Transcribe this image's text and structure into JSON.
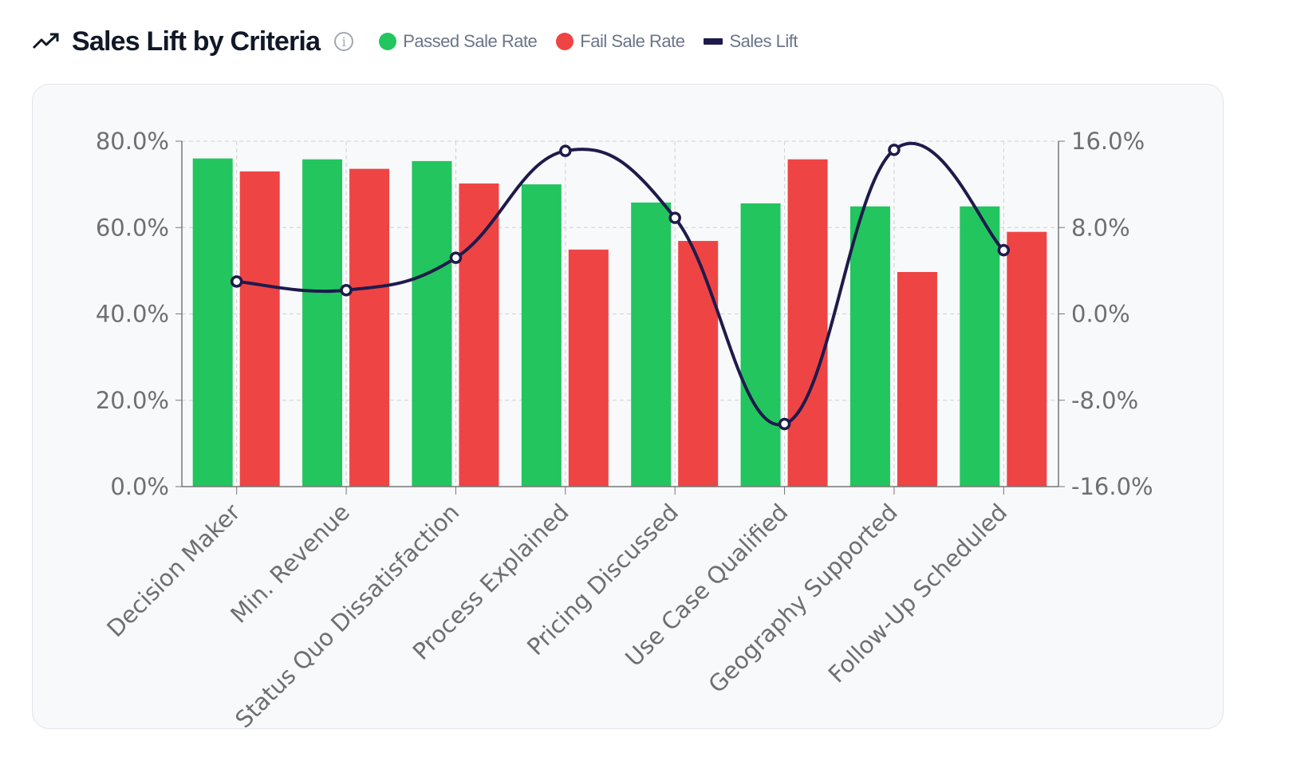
{
  "header": {
    "title": "Sales Lift by Criteria",
    "icon": "trending-up-icon",
    "info_icon": "info-icon"
  },
  "legend": [
    {
      "label": "Passed Sale Rate",
      "color": "#22c55e",
      "shape": "circle"
    },
    {
      "label": "Fail Sale Rate",
      "color": "#ef4444",
      "shape": "circle"
    },
    {
      "label": "Sales Lift",
      "color": "#1e1b4b",
      "shape": "line"
    }
  ],
  "chart_data": {
    "type": "bar+line",
    "categories": [
      "Decision Maker",
      "Min. Revenue",
      "Status Quo Dissatisfaction",
      "Process Explained",
      "Pricing Discussed",
      "Use Case Qualified",
      "Geography Supported",
      "Follow-Up Scheduled"
    ],
    "series": [
      {
        "name": "Passed Sale Rate",
        "type": "bar",
        "axis": "left",
        "color": "#22c55e",
        "values": [
          76.0,
          75.8,
          75.4,
          70.0,
          65.8,
          65.6,
          64.9,
          64.9
        ]
      },
      {
        "name": "Fail Sale Rate",
        "type": "bar",
        "axis": "left",
        "color": "#ef4444",
        "values": [
          73.0,
          73.6,
          70.2,
          54.9,
          56.9,
          75.8,
          49.7,
          59.0
        ]
      },
      {
        "name": "Sales Lift",
        "type": "line",
        "axis": "right",
        "color": "#1e1b4b",
        "values": [
          3.0,
          2.2,
          5.2,
          15.1,
          8.9,
          -10.2,
          15.2,
          5.9
        ]
      }
    ],
    "left_axis": {
      "ylim": [
        0,
        80
      ],
      "ticks": [
        "0.0%",
        "20.0%",
        "40.0%",
        "60.0%",
        "80.0%"
      ]
    },
    "right_axis": {
      "ylim": [
        -16,
        16
      ],
      "ticks": [
        "-16.0%",
        "-8.0%",
        "0.0%",
        "8.0%",
        "16.0%"
      ]
    },
    "grid": true
  }
}
